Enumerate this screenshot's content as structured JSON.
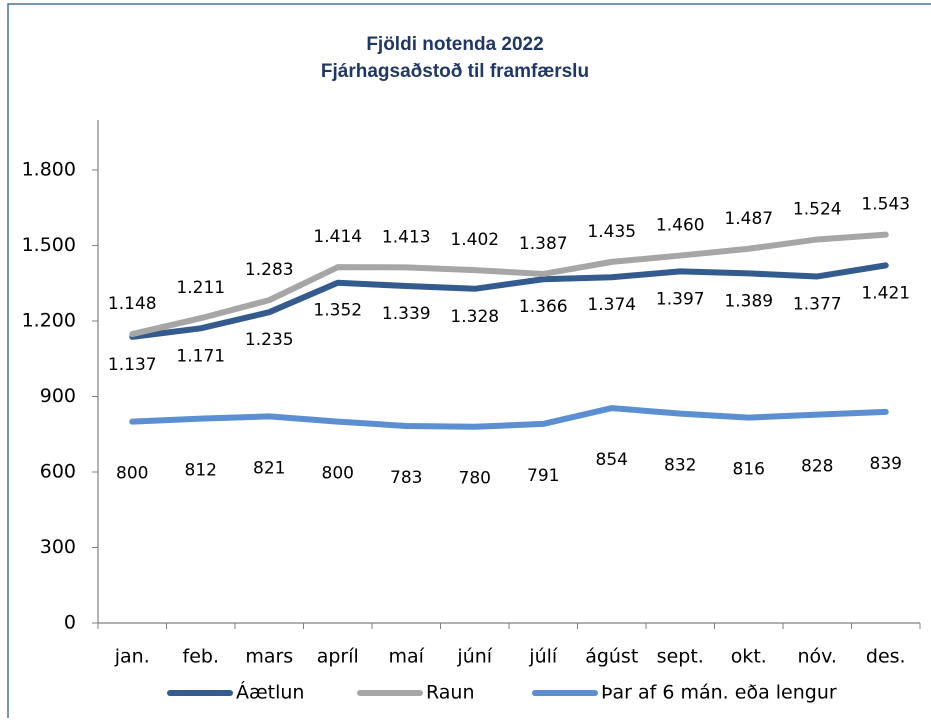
{
  "chart_data": {
    "type": "line",
    "title": "Fjöldi notenda 2022",
    "subtitle": "Fjárhagsaðstoð til framfærslu",
    "categories": [
      "jan.",
      "feb.",
      "mars",
      "apríl",
      "maí",
      "júní",
      "júlí",
      "ágúst",
      "sept.",
      "okt.",
      "nóv.",
      "des."
    ],
    "series": [
      {
        "name": "Áætlun",
        "color": "#335b8e",
        "values": [
          1137,
          1171,
          1235,
          1352,
          1339,
          1328,
          1366,
          1374,
          1397,
          1389,
          1377,
          1421
        ],
        "value_labels": [
          "1.137",
          "1.171",
          "1.235",
          "1.352",
          "1.339",
          "1.328",
          "1.366",
          "1.374",
          "1.397",
          "1.389",
          "1.377",
          "1.421"
        ]
      },
      {
        "name": "Raun",
        "color": "#a6a6a6",
        "values": [
          1148,
          1211,
          1283,
          1414,
          1413,
          1402,
          1387,
          1435,
          1460,
          1487,
          1524,
          1543
        ],
        "value_labels": [
          "1.148",
          "1.211",
          "1.283",
          "1.414",
          "1.413",
          "1.402",
          "1.387",
          "1.435",
          "1.460",
          "1.487",
          "1.524",
          "1.543"
        ]
      },
      {
        "name": "Þar af 6 mán. eða lengur",
        "color": "#5b8fd1",
        "values": [
          800,
          812,
          821,
          800,
          783,
          780,
          791,
          854,
          832,
          816,
          828,
          839
        ]
      }
    ],
    "ylim": [
      0,
      1900
    ],
    "yticks": [
      0,
      300,
      600,
      900,
      {
        "value": 1200,
        "label": "1.200"
      },
      {
        "value": 1500,
        "label": "1.500"
      },
      {
        "value": 1800,
        "label": "1.800"
      }
    ],
    "legend": "bottom"
  }
}
